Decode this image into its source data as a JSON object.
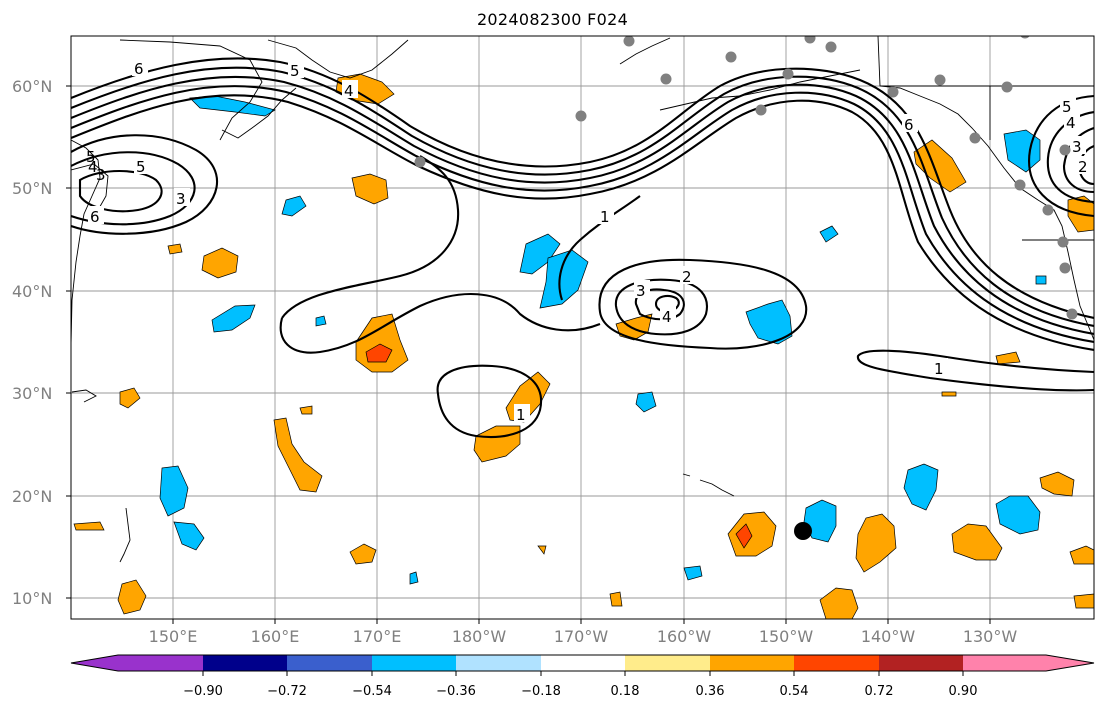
{
  "title": "2024082300 F024",
  "map": {
    "lat_labels": [
      "60°N",
      "50°N",
      "40°N",
      "30°N",
      "20°N",
      "10°N"
    ],
    "lon_labels": [
      "150°E",
      "160°E",
      "170°E",
      "180°W",
      "170°W",
      "160°W",
      "150°W",
      "140°W",
      "130°W"
    ],
    "contour_labels": [
      "6",
      "5",
      "4",
      "5",
      "3",
      "6",
      "5",
      "4",
      "3",
      "2",
      "1",
      "2",
      "3",
      "4",
      "1",
      "1",
      "6",
      "5",
      "4",
      "3",
      "2"
    ]
  },
  "colorbar": {
    "colors": [
      "#9932cc",
      "#00008b",
      "#3a5fcd",
      "#00bfff",
      "#b0e2ff",
      "#ffffff",
      "#ffec8b",
      "#ffa500",
      "#ff4500",
      "#b22222",
      "#ff82ab"
    ],
    "tick_labels": [
      "−0.90",
      "−0.72",
      "−0.54",
      "−0.36",
      "−0.18",
      "0.18",
      "0.36",
      "0.54",
      "0.72",
      "0.90"
    ]
  }
}
